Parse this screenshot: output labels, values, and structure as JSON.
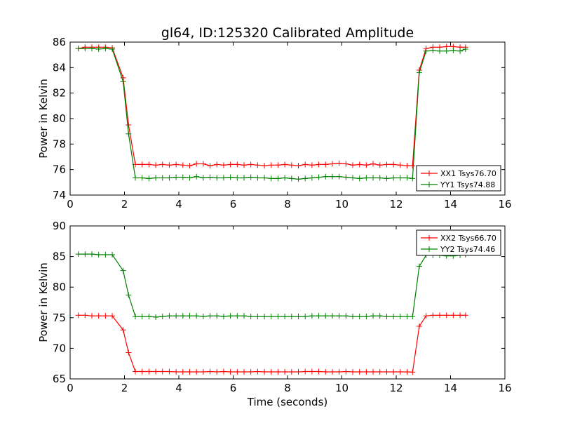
{
  "chart_data": [
    {
      "type": "line",
      "title": "gl64, ID:125320 Calibrated Amplitude",
      "xlabel": "",
      "ylabel": "Power in Kelvin",
      "xlim": [
        0,
        16
      ],
      "ylim": [
        74,
        86
      ],
      "xticks": [
        "0",
        "2",
        "4",
        "6",
        "8",
        "10",
        "12",
        "14",
        "16"
      ],
      "yticks": [
        "74",
        "76",
        "78",
        "80",
        "82",
        "84",
        "86"
      ],
      "legend_position": "lower-right",
      "grid": false,
      "colors": {
        "XX": "#ff0000",
        "YY": "#008000"
      },
      "x": [
        0.3,
        0.55,
        0.8,
        1.05,
        1.3,
        1.55,
        1.95,
        2.15,
        2.4,
        2.65,
        2.9,
        3.15,
        3.4,
        3.65,
        3.9,
        4.15,
        4.4,
        4.65,
        4.9,
        5.15,
        5.4,
        5.65,
        5.9,
        6.15,
        6.4,
        6.65,
        6.9,
        7.15,
        7.4,
        7.65,
        7.9,
        8.15,
        8.4,
        8.65,
        8.9,
        9.15,
        9.4,
        9.65,
        9.9,
        10.15,
        10.4,
        10.65,
        10.9,
        11.15,
        11.4,
        11.65,
        11.9,
        12.15,
        12.4,
        12.6,
        12.85,
        13.1,
        13.35,
        13.6,
        13.85,
        14.1,
        14.35,
        14.55
      ],
      "series": [
        {
          "name": "XX1 Tsys76.70",
          "color": "#ff0000",
          "values": [
            85.5,
            85.6,
            85.6,
            85.6,
            85.6,
            85.55,
            83.2,
            79.5,
            76.4,
            76.4,
            76.4,
            76.35,
            76.4,
            76.35,
            76.4,
            76.35,
            76.3,
            76.45,
            76.45,
            76.3,
            76.4,
            76.35,
            76.4,
            76.4,
            76.35,
            76.4,
            76.35,
            76.3,
            76.35,
            76.35,
            76.4,
            76.35,
            76.3,
            76.4,
            76.35,
            76.4,
            76.4,
            76.45,
            76.5,
            76.45,
            76.35,
            76.4,
            76.35,
            76.45,
            76.35,
            76.4,
            76.4,
            76.35,
            76.3,
            76.3,
            83.8,
            85.5,
            85.6,
            85.6,
            85.65,
            85.65,
            85.6,
            85.6
          ]
        },
        {
          "name": "YY1 Tsys74.88",
          "color": "#008000",
          "values": [
            85.5,
            85.5,
            85.5,
            85.45,
            85.5,
            85.45,
            82.9,
            78.8,
            75.35,
            75.35,
            75.3,
            75.35,
            75.35,
            75.35,
            75.4,
            75.4,
            75.35,
            75.45,
            75.35,
            75.4,
            75.35,
            75.35,
            75.4,
            75.35,
            75.35,
            75.4,
            75.35,
            75.35,
            75.3,
            75.3,
            75.35,
            75.3,
            75.25,
            75.3,
            75.35,
            75.4,
            75.45,
            75.45,
            75.45,
            75.4,
            75.35,
            75.3,
            75.35,
            75.35,
            75.35,
            75.3,
            75.35,
            75.35,
            75.35,
            75.3,
            83.6,
            85.3,
            85.35,
            85.3,
            85.3,
            85.35,
            85.3,
            85.45
          ]
        }
      ]
    },
    {
      "type": "line",
      "title": "",
      "xlabel": "Time (seconds)",
      "ylabel": "Power in Kelvin",
      "xlim": [
        0,
        16
      ],
      "ylim": [
        65,
        90
      ],
      "xticks": [
        "0",
        "2",
        "4",
        "6",
        "8",
        "10",
        "12",
        "14",
        "16"
      ],
      "yticks": [
        "65",
        "70",
        "75",
        "80",
        "85",
        "90"
      ],
      "legend_position": "upper-right",
      "grid": false,
      "colors": {
        "XX": "#ff0000",
        "YY": "#008000"
      },
      "x": [
        0.3,
        0.55,
        0.8,
        1.05,
        1.3,
        1.55,
        1.95,
        2.15,
        2.4,
        2.65,
        2.9,
        3.15,
        3.4,
        3.65,
        3.9,
        4.15,
        4.4,
        4.65,
        4.9,
        5.15,
        5.4,
        5.65,
        5.9,
        6.15,
        6.4,
        6.65,
        6.9,
        7.15,
        7.4,
        7.65,
        7.9,
        8.15,
        8.4,
        8.65,
        8.9,
        9.15,
        9.4,
        9.65,
        9.9,
        10.15,
        10.4,
        10.65,
        10.9,
        11.15,
        11.4,
        11.65,
        11.9,
        12.15,
        12.4,
        12.6,
        12.85,
        13.1,
        13.35,
        13.6,
        13.85,
        14.1,
        14.35,
        14.55
      ],
      "series": [
        {
          "name": "XX2 Tsys66.70",
          "color": "#ff0000",
          "values": [
            75.4,
            75.4,
            75.3,
            75.3,
            75.3,
            75.3,
            73.0,
            69.3,
            66.2,
            66.2,
            66.2,
            66.2,
            66.2,
            66.2,
            66.15,
            66.15,
            66.15,
            66.15,
            66.15,
            66.2,
            66.15,
            66.2,
            66.15,
            66.15,
            66.15,
            66.15,
            66.2,
            66.15,
            66.15,
            66.15,
            66.15,
            66.15,
            66.15,
            66.2,
            66.2,
            66.2,
            66.15,
            66.15,
            66.15,
            66.2,
            66.15,
            66.15,
            66.15,
            66.15,
            66.15,
            66.15,
            66.15,
            66.15,
            66.15,
            66.1,
            73.6,
            75.3,
            75.4,
            75.4,
            75.4,
            75.4,
            75.4,
            75.4
          ]
        },
        {
          "name": "YY2 Tsys74.46",
          "color": "#008000",
          "values": [
            85.4,
            85.4,
            85.4,
            85.3,
            85.3,
            85.3,
            82.7,
            78.7,
            75.2,
            75.2,
            75.2,
            75.1,
            75.2,
            75.3,
            75.3,
            75.3,
            75.3,
            75.3,
            75.2,
            75.3,
            75.3,
            75.2,
            75.3,
            75.3,
            75.3,
            75.2,
            75.2,
            75.2,
            75.2,
            75.2,
            75.2,
            75.2,
            75.2,
            75.2,
            75.3,
            75.3,
            75.3,
            75.3,
            75.3,
            75.3,
            75.2,
            75.2,
            75.2,
            75.3,
            75.3,
            75.2,
            75.2,
            75.2,
            75.2,
            75.2,
            83.4,
            85.2,
            85.2,
            85.2,
            85.1,
            85.1,
            85.2,
            85.3
          ]
        }
      ]
    }
  ]
}
